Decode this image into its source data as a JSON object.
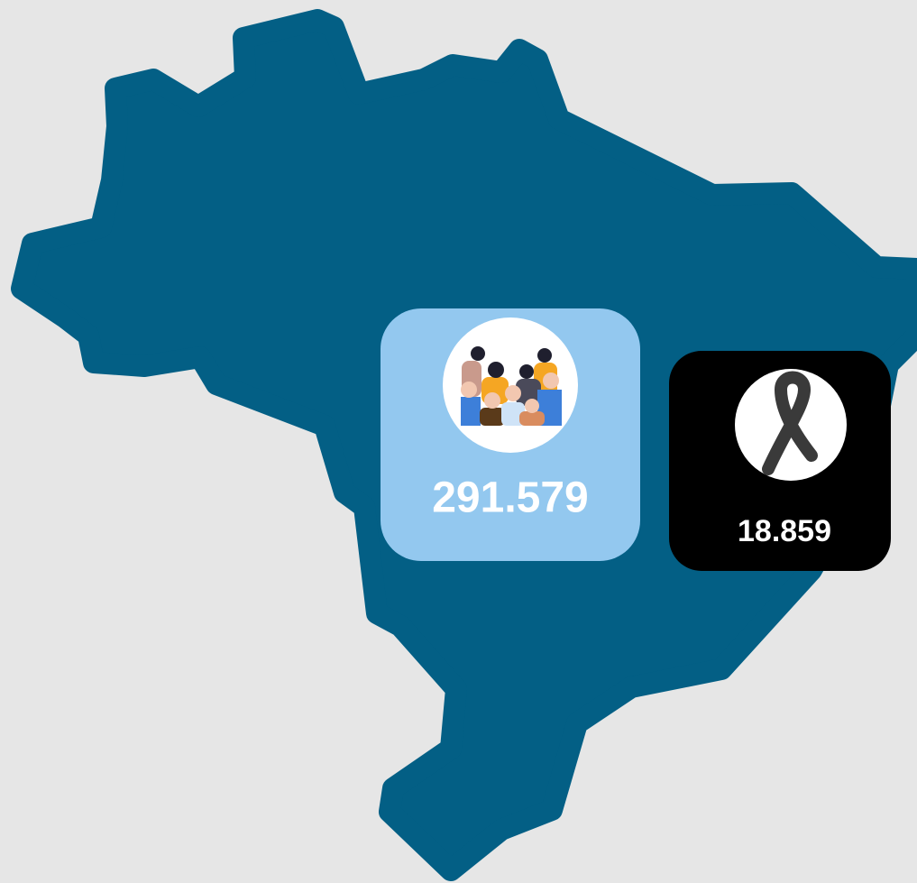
{
  "stats": {
    "cases": {
      "value": "291.579"
    },
    "deaths": {
      "value": "18.859"
    }
  }
}
